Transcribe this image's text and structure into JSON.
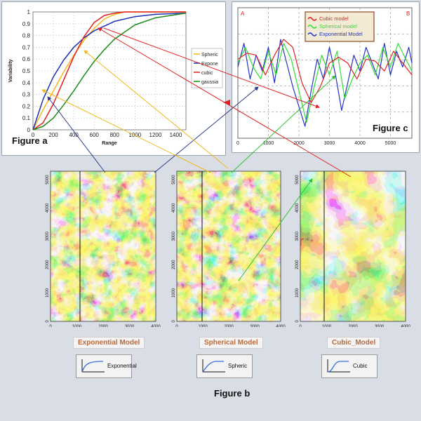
{
  "figure_a": {
    "label": "Figure a",
    "xlabel": "Range",
    "ylabel": "Variability",
    "xticks": [
      "0",
      "200",
      "400",
      "600",
      "800",
      "1000",
      "1200",
      "1400"
    ],
    "yticks": [
      "0",
      "0.1",
      "0.2",
      "0.3",
      "0.4",
      "0.5",
      "0.6",
      "0.7",
      "0.8",
      "0.9",
      "1"
    ],
    "legend": [
      {
        "name": "Spheric",
        "color": "#f5b51e"
      },
      {
        "name": "Expone",
        "color": "#1a2fb5"
      },
      {
        "name": "cubic",
        "color": "#e02020"
      },
      {
        "name": "gaussia",
        "color": "#1a8a1a"
      }
    ]
  },
  "figure_c": {
    "label": "Figure c",
    "corner_left": "A",
    "corner_right": "B",
    "xticks": [
      "0",
      "1000",
      "2000",
      "3000",
      "4000",
      "5000"
    ],
    "legend": [
      {
        "name": "Cubic model",
        "color": "#e02020"
      },
      {
        "name": "Spherical model",
        "color": "#33dd33"
      },
      {
        "name": "Exponential Model",
        "color": "#2233cc"
      }
    ]
  },
  "figure_b": {
    "label": "Figure b",
    "maps": [
      {
        "title": "Exponential Model",
        "icon_label": "Exponential"
      },
      {
        "title": "Spherical Model",
        "icon_label": "Spheric"
      },
      {
        "title": "Cubic_Model",
        "icon_label": "Cubic"
      }
    ],
    "xticks": [
      "0",
      "1000",
      "2000",
      "3000",
      "4000"
    ],
    "yticks": [
      "0",
      "1000",
      "2000",
      "3000",
      "4000",
      "5000"
    ]
  },
  "chart_data": [
    {
      "type": "line",
      "xlim": [
        0,
        1500
      ],
      "ylim": [
        0,
        1
      ],
      "series": [
        {
          "name": "Spheric",
          "x": [
            0,
            100,
            200,
            300,
            400,
            500,
            600,
            700,
            800,
            900,
            1000,
            1500
          ],
          "values": [
            0,
            0.17,
            0.33,
            0.49,
            0.63,
            0.76,
            0.86,
            0.94,
            0.98,
            1.0,
            1.0,
            1.0
          ]
        },
        {
          "name": "Expone",
          "x": [
            0,
            100,
            200,
            300,
            400,
            500,
            600,
            700,
            800,
            1000,
            1200,
            1500
          ],
          "values": [
            0,
            0.26,
            0.45,
            0.59,
            0.7,
            0.78,
            0.84,
            0.88,
            0.92,
            0.96,
            0.98,
            0.99
          ]
        },
        {
          "name": "cubic",
          "x": [
            0,
            100,
            200,
            300,
            400,
            500,
            600,
            700,
            800,
            900,
            1500
          ],
          "values": [
            0,
            0.06,
            0.22,
            0.42,
            0.62,
            0.79,
            0.91,
            0.97,
            0.99,
            1.0,
            1.0
          ]
        },
        {
          "name": "gaussia",
          "x": [
            0,
            100,
            200,
            300,
            400,
            500,
            600,
            700,
            800,
            1000,
            1200,
            1500
          ],
          "values": [
            0,
            0.03,
            0.1,
            0.21,
            0.33,
            0.46,
            0.58,
            0.68,
            0.77,
            0.89,
            0.95,
            0.99
          ]
        }
      ]
    },
    {
      "type": "line",
      "xlim": [
        0,
        5700
      ],
      "series": [
        {
          "name": "Cubic model",
          "x": [
            0,
            300,
            600,
            900,
            1200,
            1500,
            1800,
            2100,
            2400,
            2700,
            3000,
            3300,
            3600,
            3900,
            4200,
            4500,
            4800,
            5100,
            5400,
            5700
          ],
          "values": [
            0.2,
            0.35,
            0.3,
            -0.2,
            0.3,
            0.7,
            0.5,
            -0.4,
            -0.9,
            -0.5,
            0.1,
            0.25,
            0.1,
            -0.3,
            0.2,
            0.15,
            -0.1,
            0.4,
            0.1,
            -0.2
          ]
        },
        {
          "name": "Spherical model",
          "x": [
            0,
            250,
            500,
            750,
            1000,
            1250,
            1500,
            1750,
            2000,
            2250,
            2500,
            2750,
            3000,
            3250,
            3500,
            3750,
            4000,
            4250,
            4500,
            4750,
            5000,
            5250,
            5500,
            5700
          ],
          "values": [
            0.1,
            0.5,
            0.0,
            -0.3,
            0.4,
            -0.2,
            0.6,
            0.2,
            -0.6,
            -1.4,
            -0.5,
            0.3,
            -0.2,
            0.4,
            -0.8,
            -0.3,
            0.1,
            0.3,
            -0.2,
            0.5,
            0.0,
            0.6,
            0.2,
            -0.1
          ]
        },
        {
          "name": "Exponential Model",
          "x": [
            0,
            200,
            400,
            600,
            800,
            1000,
            1200,
            1400,
            1600,
            1800,
            2000,
            2200,
            2400,
            2600,
            2800,
            3000,
            3200,
            3400,
            3600,
            3800,
            4000,
            4200,
            4400,
            4600,
            4800,
            5000,
            5200,
            5400,
            5600,
            5700
          ],
          "values": [
            0.0,
            0.6,
            -0.3,
            0.3,
            -0.1,
            0.5,
            -0.4,
            0.7,
            0.1,
            -0.5,
            -1.0,
            -1.5,
            -0.6,
            0.2,
            -0.3,
            0.5,
            -0.2,
            -1.1,
            -0.4,
            0.3,
            -0.1,
            0.5,
            0.1,
            -0.3,
            0.6,
            -0.2,
            0.4,
            0.0,
            0.5,
            0.1
          ]
        }
      ]
    }
  ]
}
